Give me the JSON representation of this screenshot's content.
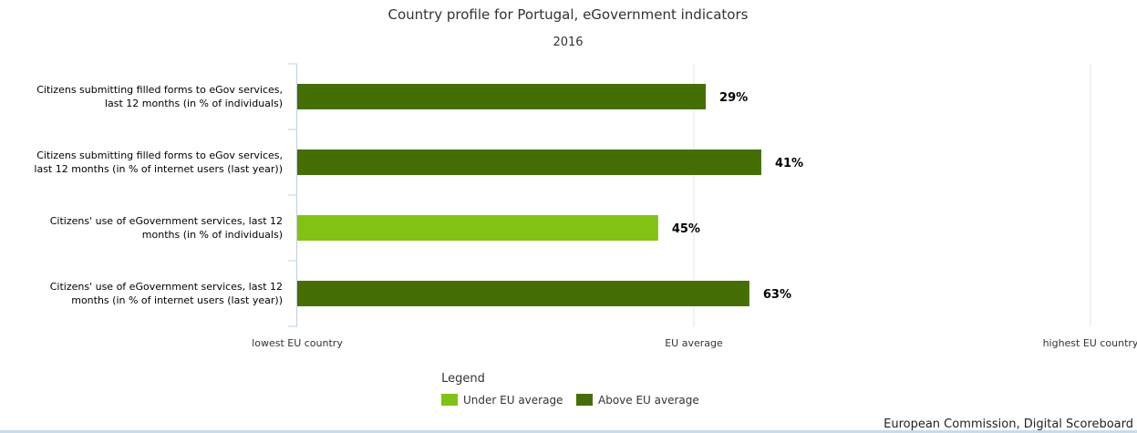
{
  "chart_data": {
    "type": "bar",
    "orientation": "horizontal",
    "title": "Country profile for Portugal, eGovernment indicators",
    "subtitle": "2016",
    "categories": [
      [
        "Citizens submitting filled forms to eGov services,",
        "last 12 months (in % of individuals)"
      ],
      [
        "Citizens submitting filled forms to eGov services,",
        "last 12 months (in % of internet users (last year))"
      ],
      [
        "Citizens' use of eGovernment services, last 12",
        "months (in % of individuals)"
      ],
      [
        "Citizens' use of eGovernment services, last 12",
        "months (in % of internet users (last year))"
      ]
    ],
    "values": [
      1.03,
      1.17,
      0.91,
      1.14
    ],
    "data_labels": [
      "29%",
      "41%",
      "45%",
      "63%"
    ],
    "status": [
      "above",
      "above",
      "under",
      "above"
    ],
    "xlim": [
      0,
      2
    ],
    "x_ticks": [
      {
        "value": 0,
        "label": "lowest EU country"
      },
      {
        "value": 1,
        "label": "EU average"
      },
      {
        "value": 2,
        "label": "highest EU country"
      }
    ],
    "grid": true,
    "legend": {
      "title": "Legend",
      "position": "bottom-center",
      "items": [
        {
          "key": "under",
          "label": "Under EU average",
          "color": "#82c214"
        },
        {
          "key": "above",
          "label": "Above EU average",
          "color": "#456f05"
        }
      ]
    }
  },
  "credit": "European Commission, Digital Scoreboard"
}
